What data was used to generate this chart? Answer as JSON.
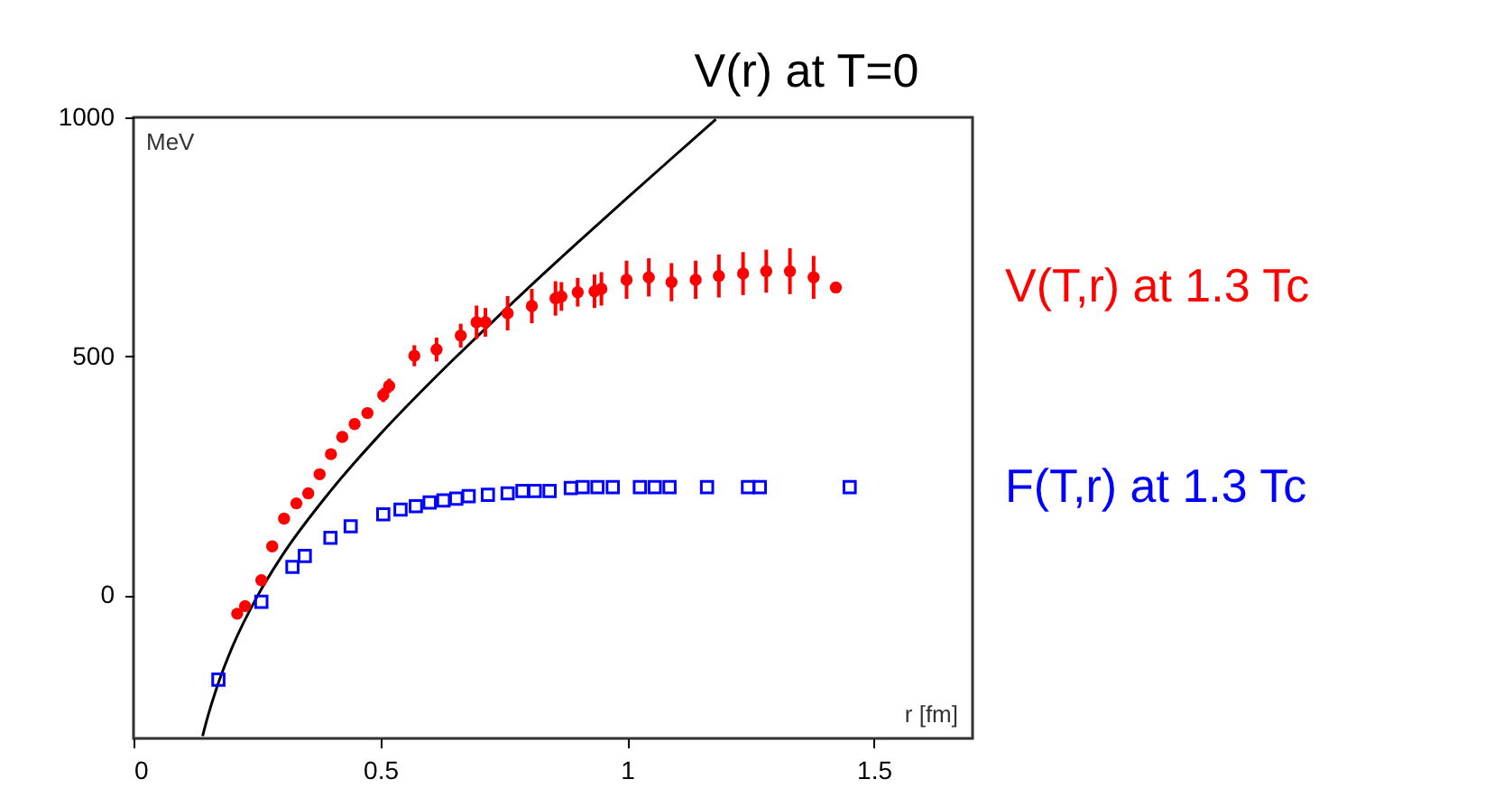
{
  "chart_data": {
    "type": "scatter",
    "xlabel": "r [fm]",
    "ylabel": "MeV",
    "xlim": [
      0,
      1.7
    ],
    "ylim": [
      -300,
      1000
    ],
    "xticks": [
      0,
      0.5,
      1,
      1.5
    ],
    "yticks": [
      0,
      500,
      1000
    ],
    "grid": false,
    "series": [
      {
        "name": "V(r)  at T=0",
        "type": "line",
        "color": "#000000",
        "marker": "none",
        "line_style": "solid",
        "x": [
          0.14,
          0.15,
          0.175,
          0.2,
          0.25,
          0.3,
          0.4,
          0.5,
          0.6,
          0.7,
          0.8,
          0.9,
          1.0,
          1.1,
          1.18
        ],
        "values": [
          -295,
          -256,
          -175,
          -109,
          -4,
          81,
          219,
          337,
          444,
          545,
          643,
          738,
          831,
          923,
          996
        ]
      },
      {
        "name": "V(T,r)  at 1.3 Tc",
        "color": "#ff0000",
        "marker": "circle",
        "x": [
          0.21,
          0.226,
          0.259,
          0.281,
          0.305,
          0.33,
          0.354,
          0.377,
          0.4,
          0.423,
          0.448,
          0.474,
          0.506,
          0.518,
          0.569,
          0.614,
          0.663,
          0.695,
          0.713,
          0.758,
          0.807,
          0.855,
          0.867,
          0.9,
          0.934,
          0.948,
          0.999,
          1.044,
          1.09,
          1.139,
          1.186,
          1.235,
          1.282,
          1.33,
          1.378,
          1.423
        ],
        "values": [
          -39,
          -23,
          31,
          102,
          160,
          192,
          213,
          253,
          295,
          331,
          358,
          381,
          419,
          438,
          501,
          514,
          543,
          571,
          571,
          590,
          605,
          621,
          625,
          634,
          636,
          641,
          660,
          665,
          655,
          660,
          668,
          673,
          678,
          678,
          665,
          644
        ],
        "errors": [
          null,
          null,
          null,
          null,
          null,
          null,
          null,
          null,
          null,
          null,
          null,
          null,
          15,
          15,
          22,
          25,
          25,
          35,
          30,
          36,
          36,
          36,
          30,
          30,
          35,
          35,
          40,
          40,
          40,
          40,
          45,
          45,
          45,
          48,
          45,
          12
        ]
      },
      {
        "name": "F(T,r)  at 1.3 Tc",
        "color": "#0000ff",
        "marker": "square",
        "x": [
          0.172,
          0.259,
          0.322,
          0.347,
          0.399,
          0.44,
          0.506,
          0.541,
          0.572,
          0.6,
          0.628,
          0.654,
          0.679,
          0.718,
          0.758,
          0.788,
          0.813,
          0.843,
          0.886,
          0.91,
          0.94,
          0.971,
          1.026,
          1.056,
          1.086,
          1.162,
          1.245,
          1.269,
          1.451
        ],
        "values": [
          -177,
          -14,
          59,
          82,
          120,
          144,
          169,
          179,
          186,
          194,
          198,
          202,
          207,
          210,
          213,
          218,
          218,
          218,
          224,
          226,
          226,
          226,
          226,
          226,
          226,
          226,
          226,
          226,
          226
        ]
      }
    ]
  }
}
